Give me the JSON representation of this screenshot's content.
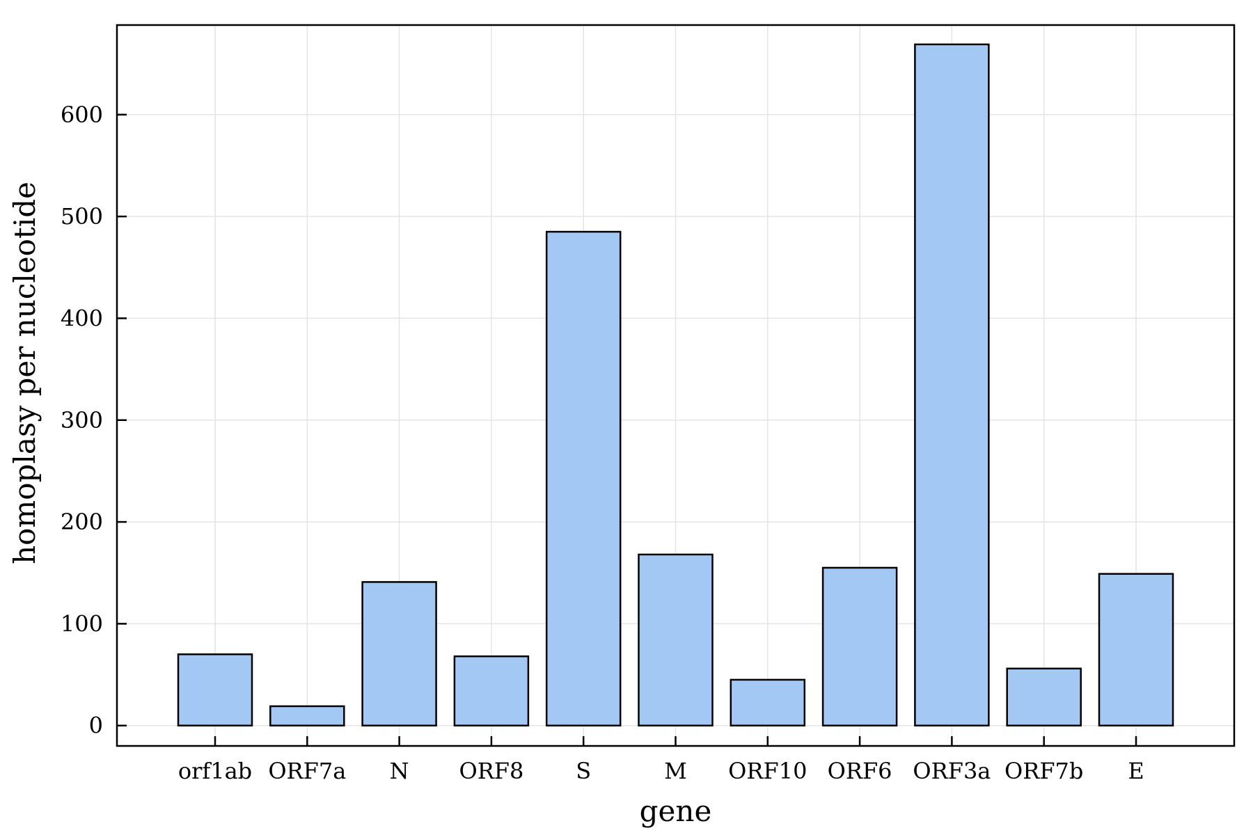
{
  "chart_data": {
    "type": "bar",
    "xlabel": "gene",
    "ylabel": "homoplasy per nucleotide",
    "categories": [
      "orf1ab",
      "ORF7a",
      "N",
      "ORF8",
      "S",
      "M",
      "ORF10",
      "ORF6",
      "ORF3a",
      "ORF7b",
      "E"
    ],
    "values": [
      70,
      19,
      141,
      68,
      485,
      168,
      45,
      155,
      669,
      56,
      149
    ],
    "ylim": [
      -20,
      688
    ],
    "yticks": [
      0,
      100,
      200,
      300,
      400,
      500,
      600
    ],
    "grid": true,
    "legend": "none",
    "bar_color": "#a3c8f4",
    "edge_color": "#000000"
  }
}
